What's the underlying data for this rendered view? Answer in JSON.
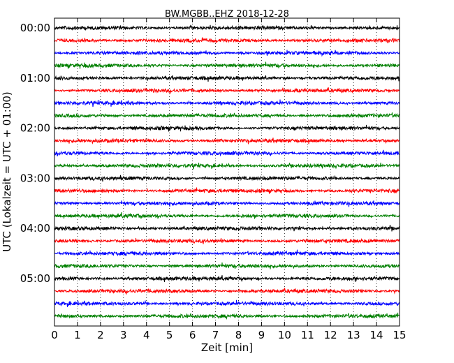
{
  "chart_data": {
    "type": "line",
    "title": "BW.MGBB..EHZ 2018-12-28",
    "xlabel": "Zeit  [min]",
    "ylabel": "UTC (Lokalzeit = UTC + 01:00)",
    "xlim": [
      0,
      15
    ],
    "x_ticks": [
      "0",
      "1",
      "2",
      "3",
      "4",
      "5",
      "6",
      "7",
      "8",
      "9",
      "10",
      "11",
      "12",
      "13",
      "14",
      "15"
    ],
    "y_ticks": [
      "00:00",
      "01:00",
      "02:00",
      "03:00",
      "04:00",
      "05:00"
    ],
    "grid": "vertical dotted",
    "trace_colors": [
      "#000000",
      "#ff0000",
      "#0000ff",
      "#008000"
    ],
    "traces": [
      {
        "start": "00:00"
      },
      {
        "start": "00:15"
      },
      {
        "start": "00:30"
      },
      {
        "start": "00:45"
      },
      {
        "start": "01:00"
      },
      {
        "start": "01:15"
      },
      {
        "start": "01:30"
      },
      {
        "start": "01:45"
      },
      {
        "start": "02:00"
      },
      {
        "start": "02:15"
      },
      {
        "start": "02:30"
      },
      {
        "start": "02:45"
      },
      {
        "start": "03:00"
      },
      {
        "start": "03:15"
      },
      {
        "start": "03:30"
      },
      {
        "start": "03:45"
      },
      {
        "start": "04:00"
      },
      {
        "start": "04:15"
      },
      {
        "start": "04:30"
      },
      {
        "start": "04:45"
      },
      {
        "start": "05:00"
      },
      {
        "start": "05:15"
      },
      {
        "start": "05:30"
      },
      {
        "start": "05:45"
      }
    ]
  }
}
